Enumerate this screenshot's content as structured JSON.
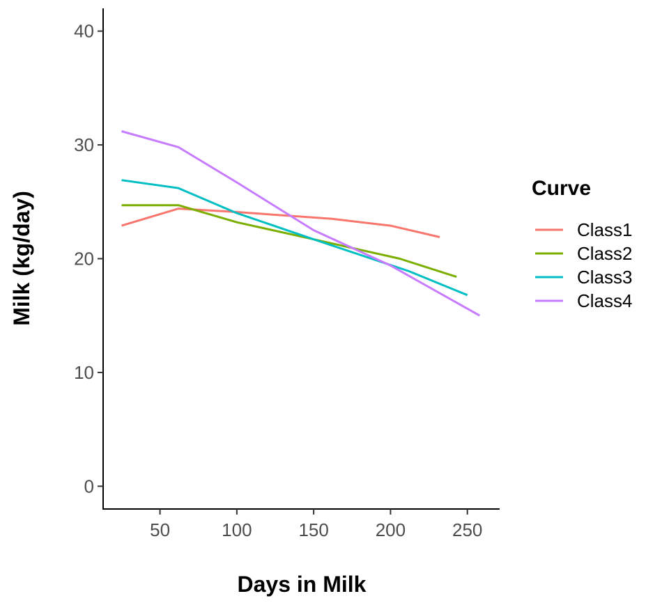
{
  "chart_data": {
    "type": "line",
    "title": "",
    "xlabel": "Days in Milk",
    "ylabel": "Milk (kg/day)",
    "xlim": [
      13,
      271
    ],
    "ylim": [
      -2,
      42
    ],
    "x_ticks": [
      50,
      100,
      150,
      200,
      250
    ],
    "y_ticks": [
      0,
      10,
      20,
      30,
      40
    ],
    "grid": false,
    "legend": {
      "title": "Curve",
      "placement": "right"
    },
    "series": [
      {
        "name": "Class1",
        "color": "#F8766D",
        "x": [
          25,
          62,
          100,
          162,
          200,
          232
        ],
        "y": [
          22.9,
          24.4,
          24.1,
          23.5,
          22.9,
          21.9
        ]
      },
      {
        "name": "Class2",
        "color": "#7CAE00",
        "x": [
          25,
          62,
          100,
          150,
          206,
          243
        ],
        "y": [
          24.7,
          24.7,
          23.2,
          21.7,
          20.0,
          18.4
        ]
      },
      {
        "name": "Class3",
        "color": "#00BFC4",
        "x": [
          25,
          62,
          100,
          150,
          212,
          250
        ],
        "y": [
          26.9,
          26.2,
          24.0,
          21.7,
          18.9,
          16.8
        ]
      },
      {
        "name": "Class4",
        "color": "#C77CFF",
        "x": [
          25,
          62,
          100,
          150,
          200,
          258
        ],
        "y": [
          31.2,
          29.8,
          26.7,
          22.5,
          19.4,
          15.0
        ]
      }
    ]
  }
}
